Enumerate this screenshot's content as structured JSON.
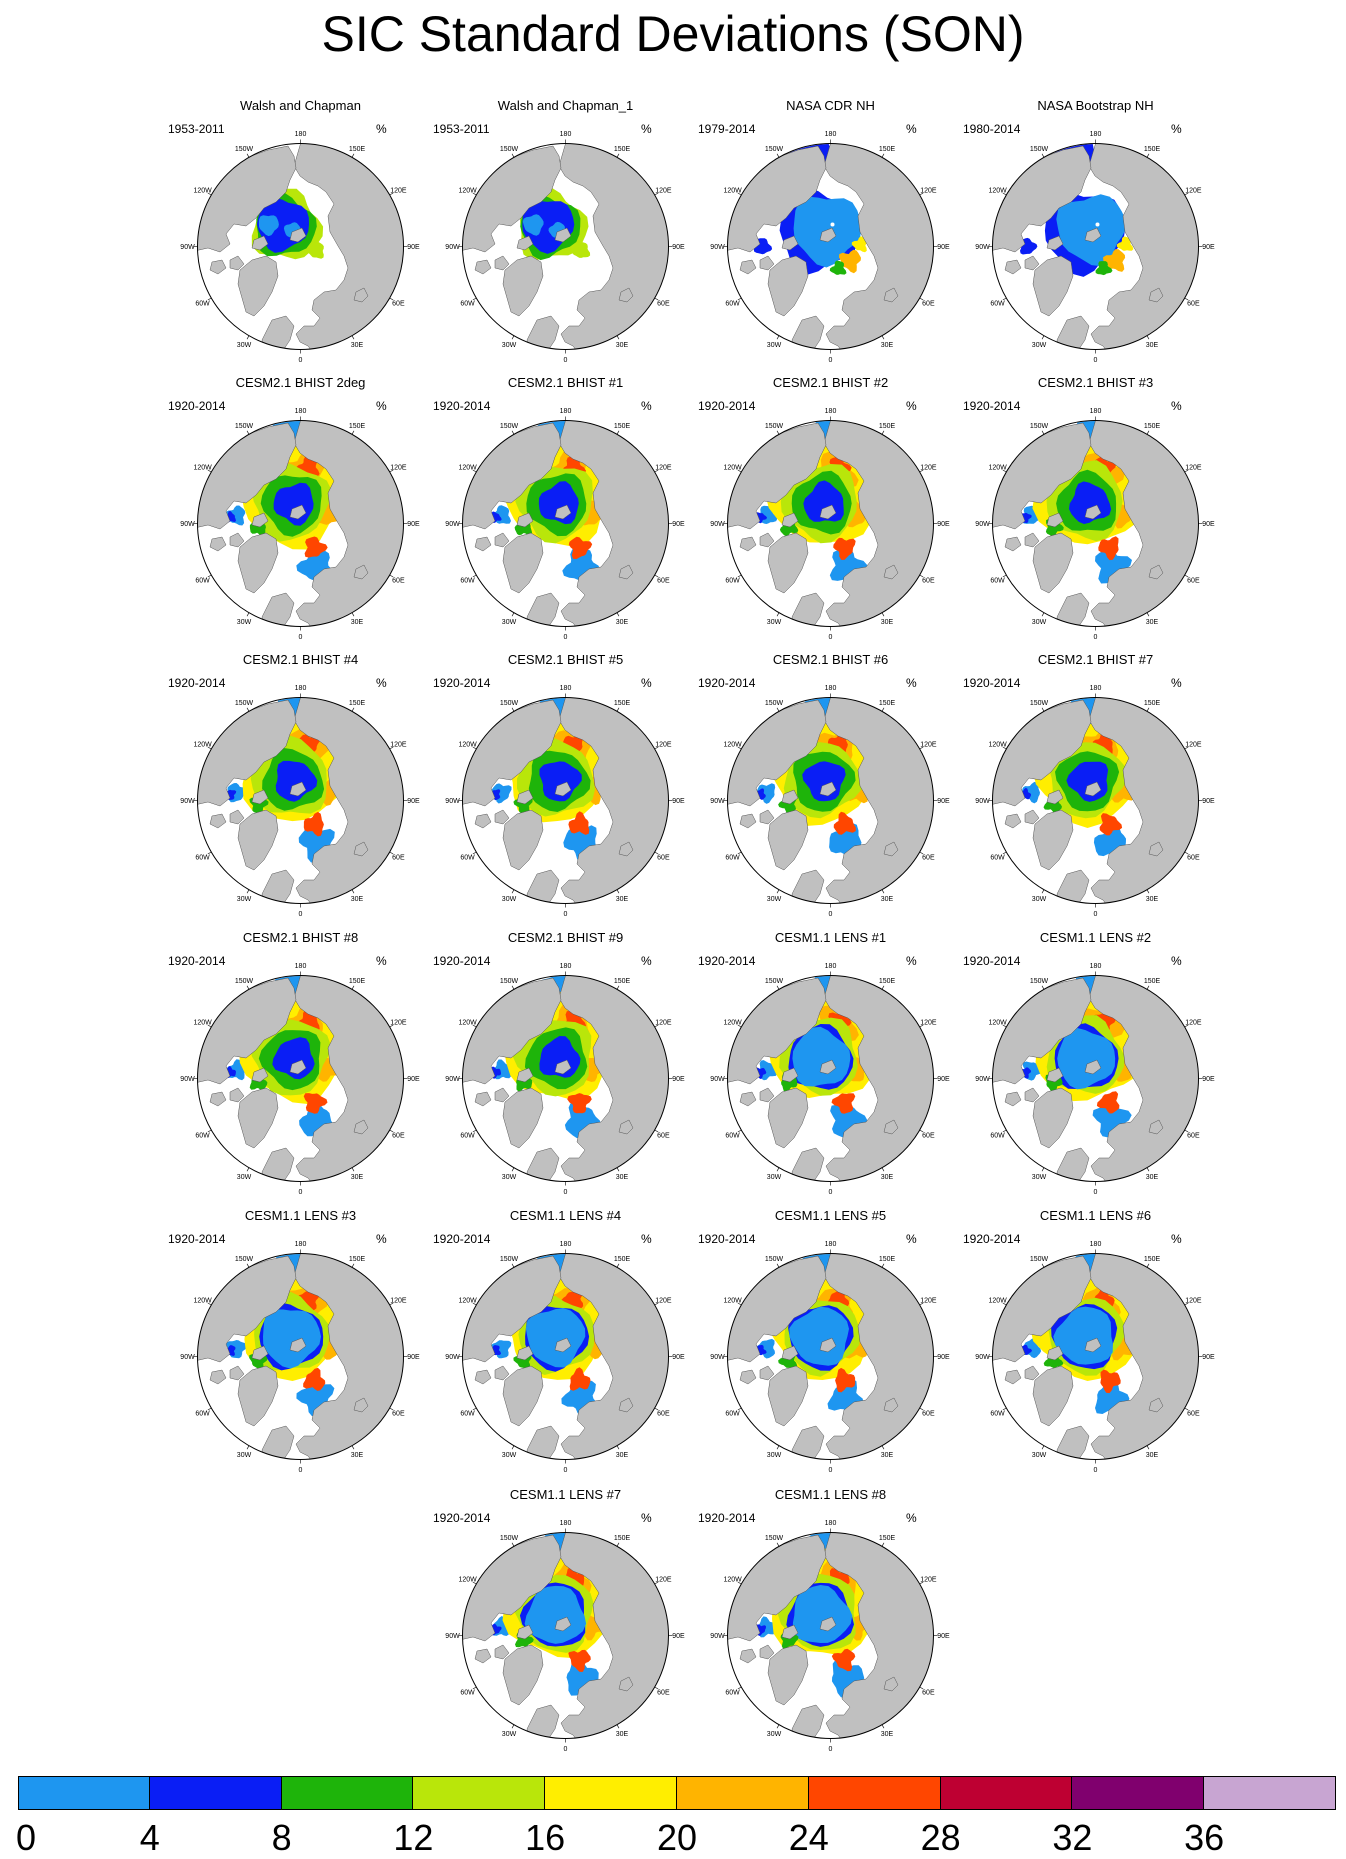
{
  "title": "SIC Standard Deviations (SON)",
  "unit": "%",
  "longitude_labels": [
    "180",
    "150W",
    "150E",
    "120W",
    "120E",
    "90W",
    "90E",
    "60W",
    "60E",
    "30W",
    "30E",
    "0"
  ],
  "colorbar": {
    "ticks": [
      "0",
      "4",
      "8",
      "12",
      "16",
      "20",
      "24",
      "28",
      "32",
      "36"
    ],
    "colors": [
      "#1e96f0",
      "#0a1ef5",
      "#1eb40a",
      "#b9e60a",
      "#ffee00",
      "#ffb400",
      "#ff4600",
      "#be0032",
      "#80006e",
      "#c8a5d2"
    ]
  },
  "map_colors": {
    "land": "#c0c0c0",
    "ocean": "#ffffff",
    "outline": "#000000"
  },
  "panels": [
    {
      "title": "Walsh and Chapman",
      "period": "1953-2011",
      "style": "obs_wc"
    },
    {
      "title": "Walsh and Chapman_1",
      "period": "1953-2011",
      "style": "obs_wc"
    },
    {
      "title": "NASA CDR NH",
      "period": "1979-2014",
      "style": "obs_nasa"
    },
    {
      "title": "NASA Bootstrap NH",
      "period": "1980-2014",
      "style": "obs_nasa"
    },
    {
      "title": "CESM2.1 BHIST 2deg",
      "period": "1920-2014",
      "style": "cesm2"
    },
    {
      "title": "CESM2.1 BHIST #1",
      "period": "1920-2014",
      "style": "cesm2"
    },
    {
      "title": "CESM2.1 BHIST #2",
      "period": "1920-2014",
      "style": "cesm2"
    },
    {
      "title": "CESM2.1 BHIST #3",
      "period": "1920-2014",
      "style": "cesm2"
    },
    {
      "title": "CESM2.1 BHIST #4",
      "period": "1920-2014",
      "style": "cesm2"
    },
    {
      "title": "CESM2.1 BHIST #5",
      "period": "1920-2014",
      "style": "cesm2"
    },
    {
      "title": "CESM2.1 BHIST #6",
      "period": "1920-2014",
      "style": "cesm2"
    },
    {
      "title": "CESM2.1 BHIST #7",
      "period": "1920-2014",
      "style": "cesm2"
    },
    {
      "title": "CESM2.1 BHIST #8",
      "period": "1920-2014",
      "style": "cesm2"
    },
    {
      "title": "CESM2.1 BHIST #9",
      "period": "1920-2014",
      "style": "cesm2"
    },
    {
      "title": "CESM1.1 LENS #1",
      "period": "1920-2014",
      "style": "cesm1"
    },
    {
      "title": "CESM1.1 LENS #2",
      "period": "1920-2014",
      "style": "cesm1"
    },
    {
      "title": "CESM1.1 LENS #3",
      "period": "1920-2014",
      "style": "cesm1"
    },
    {
      "title": "CESM1.1 LENS #4",
      "period": "1920-2014",
      "style": "cesm1"
    },
    {
      "title": "CESM1.1 LENS #5",
      "period": "1920-2014",
      "style": "cesm1"
    },
    {
      "title": "CESM1.1 LENS #6",
      "period": "1920-2014",
      "style": "cesm1"
    },
    {
      "title": "CESM1.1 LENS #7",
      "period": "1920-2014",
      "style": "cesm1"
    },
    {
      "title": "CESM1.1 LENS #8",
      "period": "1920-2014",
      "style": "cesm1"
    }
  ]
}
